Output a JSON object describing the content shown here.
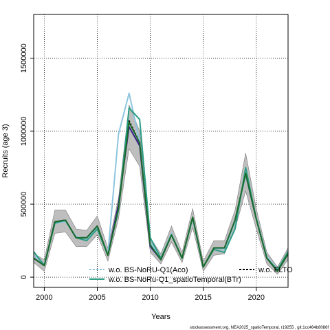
{
  "chart_data": {
    "type": "line",
    "title": "",
    "xlabel": "Years",
    "ylabel": "Recruits (age 3)",
    "xlim": [
      1999,
      2023
    ],
    "ylim": [
      -70000000,
      1800000000
    ],
    "x_ticks": [
      2000,
      2005,
      2010,
      2015,
      2020
    ],
    "y_ticks": [
      0,
      500000000,
      1000000000,
      1500000000
    ],
    "y_tick_labels": [
      "0",
      "500000",
      "1000000",
      "1500000"
    ],
    "grid": true,
    "legend_placement": "bottom",
    "x": [
      1999,
      2000,
      2001,
      2002,
      2003,
      2004,
      2005,
      2006,
      2007,
      2008,
      2009,
      2010,
      2011,
      2012,
      2013,
      2014,
      2015,
      2016,
      2017,
      2018,
      2019,
      2020,
      2021,
      2022,
      2023
    ],
    "band": {
      "name": "confidence",
      "lower": [
        100000000,
        40000000,
        300000000,
        310000000,
        210000000,
        210000000,
        290000000,
        110000000,
        400000000,
        880000000,
        760000000,
        170000000,
        90000000,
        240000000,
        100000000,
        340000000,
        40000000,
        150000000,
        160000000,
        330000000,
        590000000,
        330000000,
        90000000,
        20000000,
        120000000
      ],
      "upper": [
        160000000,
        120000000,
        460000000,
        460000000,
        330000000,
        320000000,
        420000000,
        200000000,
        540000000,
        1180000000,
        1000000000,
        270000000,
        160000000,
        350000000,
        170000000,
        470000000,
        110000000,
        250000000,
        250000000,
        460000000,
        850000000,
        470000000,
        170000000,
        70000000,
        200000000
      ],
      "color": "#bebebe"
    },
    "series": [
      {
        "name": "FLTO",
        "color": "#000000",
        "dash": "3,2",
        "width": 2,
        "values": [
          130000000,
          80000000,
          380000000,
          390000000,
          270000000,
          270000000,
          350000000,
          150000000,
          470000000,
          1070000000,
          920000000,
          220000000,
          120000000,
          290000000,
          130000000,
          410000000,
          70000000,
          200000000,
          200000000,
          390000000,
          710000000,
          400000000,
          130000000,
          40000000,
          160000000
        ]
      },
      {
        "name": "",
        "color": "#3a1f8c",
        "dash": "",
        "width": 2,
        "values": [
          130000000,
          80000000,
          380000000,
          390000000,
          270000000,
          270000000,
          350000000,
          150000000,
          500000000,
          1030000000,
          900000000,
          210000000,
          120000000,
          290000000,
          130000000,
          410000000,
          70000000,
          200000000,
          200000000,
          390000000,
          700000000,
          400000000,
          130000000,
          40000000,
          160000000
        ]
      },
      {
        "name": "w.o. BS-NoRU-Q1(Aco)",
        "color": "#8ec5e0",
        "dash": "",
        "width": 2,
        "values": [
          150000000,
          90000000,
          370000000,
          380000000,
          280000000,
          260000000,
          340000000,
          160000000,
          980000000,
          1260000000,
          930000000,
          240000000,
          130000000,
          300000000,
          130000000,
          400000000,
          70000000,
          200000000,
          190000000,
          380000000,
          700000000,
          410000000,
          140000000,
          50000000,
          170000000
        ]
      },
      {
        "name": "w.o. BS-NoRu-Q1_spatioTemporal(BTr)",
        "color": "#2a9c82",
        "dash": "",
        "width": 2,
        "values": [
          175000000,
          80000000,
          370000000,
          390000000,
          270000000,
          250000000,
          330000000,
          150000000,
          460000000,
          1160000000,
          1080000000,
          270000000,
          130000000,
          290000000,
          130000000,
          410000000,
          70000000,
          190000000,
          170000000,
          330000000,
          750000000,
          400000000,
          130000000,
          50000000,
          175000000
        ]
      },
      {
        "name": "",
        "color": "#1a6b2a",
        "dash": "",
        "width": 2,
        "values": [
          130000000,
          80000000,
          380000000,
          390000000,
          270000000,
          270000000,
          350000000,
          150000000,
          470000000,
          1060000000,
          920000000,
          220000000,
          120000000,
          290000000,
          130000000,
          410000000,
          70000000,
          200000000,
          200000000,
          390000000,
          710000000,
          400000000,
          130000000,
          40000000,
          160000000
        ]
      }
    ],
    "legend": [
      {
        "label": "w.o. BS-NoRU-Q1(Aco)",
        "color": "#8ec5e0",
        "dash": "3,2"
      },
      {
        "label": "w.o. BS-NoRu-Q1_spatioTemporal(BTr)",
        "color": "#2a9c82",
        "dash": ""
      },
      {
        "label": "w.o. FLTO",
        "color": "#000000",
        "dash": "3,2"
      }
    ],
    "footer": "stockassessment.org, NEA2025_spatioTemporal, r19255 , git:1cc464b8086f"
  }
}
